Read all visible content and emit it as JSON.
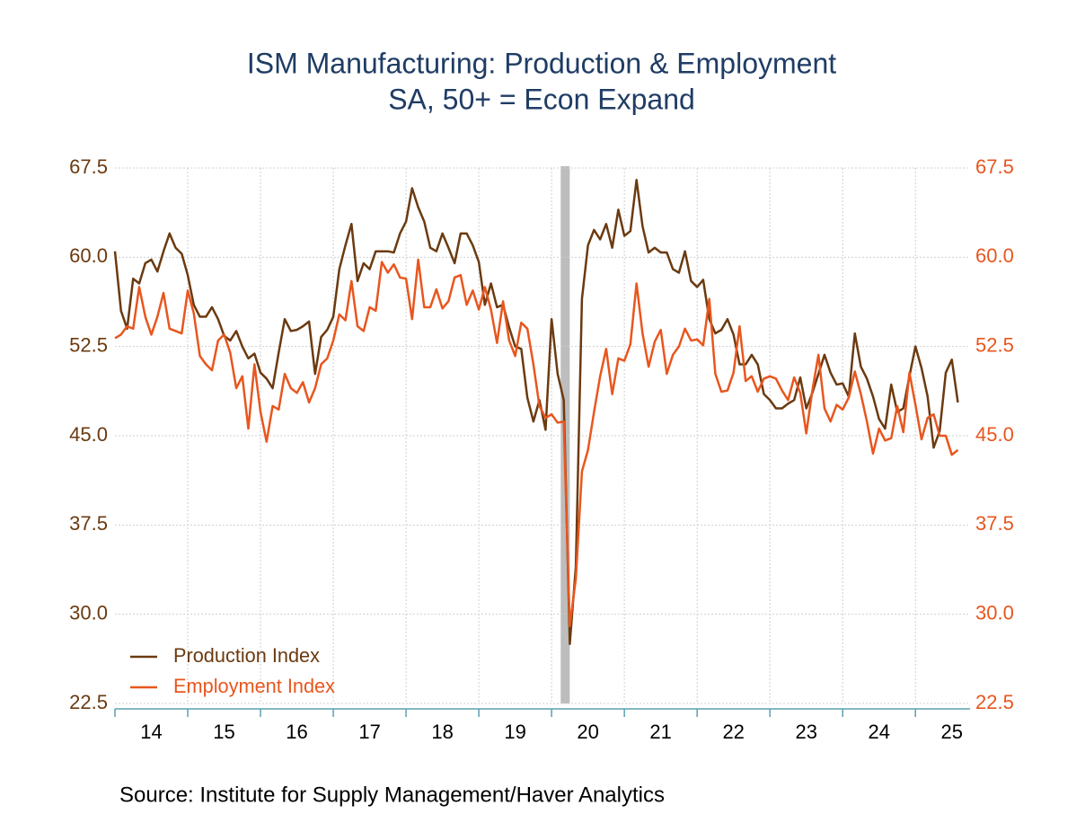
{
  "chart_data": {
    "type": "line",
    "title": "ISM Manufacturing: Production & Employment",
    "subtitle": "SA, 50+ = Econ Expand",
    "source": "Source:  Institute for Supply Management/Haver Analytics",
    "xlim": [
      2014,
      2025.75
    ],
    "xticks": [
      {
        "value": 2014,
        "label": "14"
      },
      {
        "value": 2015,
        "label": "15"
      },
      {
        "value": 2016,
        "label": "16"
      },
      {
        "value": 2017,
        "label": "17"
      },
      {
        "value": 2018,
        "label": "18"
      },
      {
        "value": 2019,
        "label": "19"
      },
      {
        "value": 2020,
        "label": "20"
      },
      {
        "value": 2021,
        "label": "21"
      },
      {
        "value": 2022,
        "label": "22"
      },
      {
        "value": 2023,
        "label": "23"
      },
      {
        "value": 2024,
        "label": "24"
      },
      {
        "value": 2025,
        "label": "25"
      }
    ],
    "ylim": [
      22.5,
      67.5
    ],
    "yticks": [
      22.5,
      {
        "value": 30,
        "label": "30.0"
      },
      37.5,
      {
        "value": 45,
        "label": "45.0"
      },
      52.5,
      {
        "value": 60,
        "label": "60.0"
      },
      67.5
    ],
    "y2lim": [
      22.5,
      67.5
    ],
    "y2ticks": [
      22.5,
      {
        "value": 30,
        "label": "30.0"
      },
      37.5,
      {
        "value": 45,
        "label": "45.0"
      },
      52.5,
      {
        "value": 60,
        "label": "60.0"
      },
      67.5
    ],
    "grid": true,
    "legend": "lower left",
    "recession": [
      2020.125,
      2020.25
    ],
    "x": [
      2014,
      2014.083,
      2014.167,
      2014.25,
      2014.333,
      2014.417,
      2014.5,
      2014.583,
      2014.667,
      2014.75,
      2014.833,
      2014.917,
      2015,
      2015.083,
      2015.167,
      2015.25,
      2015.333,
      2015.417,
      2015.5,
      2015.583,
      2015.667,
      2015.75,
      2015.833,
      2015.917,
      2016,
      2016.083,
      2016.167,
      2016.25,
      2016.333,
      2016.417,
      2016.5,
      2016.583,
      2016.667,
      2016.75,
      2016.833,
      2016.917,
      2017,
      2017.083,
      2017.167,
      2017.25,
      2017.333,
      2017.417,
      2017.5,
      2017.583,
      2017.667,
      2017.75,
      2017.833,
      2017.917,
      2018,
      2018.083,
      2018.167,
      2018.25,
      2018.333,
      2018.417,
      2018.5,
      2018.583,
      2018.667,
      2018.75,
      2018.833,
      2018.917,
      2019,
      2019.083,
      2019.167,
      2019.25,
      2019.333,
      2019.417,
      2019.5,
      2019.583,
      2019.667,
      2019.75,
      2019.833,
      2019.917,
      2020,
      2020.083,
      2020.167,
      2020.25,
      2020.333,
      2020.417,
      2020.5,
      2020.583,
      2020.667,
      2020.75,
      2020.833,
      2020.917,
      2021,
      2021.083,
      2021.167,
      2021.25,
      2021.333,
      2021.417,
      2021.5,
      2021.583,
      2021.667,
      2021.75,
      2021.833,
      2021.917,
      2022,
      2022.083,
      2022.167,
      2022.25,
      2022.333,
      2022.417,
      2022.5,
      2022.583,
      2022.667,
      2022.75,
      2022.833,
      2022.917,
      2023,
      2023.083,
      2023.167,
      2023.25,
      2023.333,
      2023.417,
      2023.5,
      2023.583,
      2023.667,
      2023.75,
      2023.833,
      2023.917,
      2024,
      2024.083,
      2024.167,
      2024.25,
      2024.333,
      2024.417,
      2024.5,
      2024.583,
      2024.667,
      2024.75,
      2024.833,
      2024.917,
      2025,
      2025.083,
      2025.167,
      2025.25,
      2025.333,
      2025.417,
      2025.5,
      2025.583
    ],
    "series": [
      {
        "name": "Production Index",
        "color": "#6b3a10",
        "values": [
          60.5,
          55.5,
          54.0,
          58.2,
          57.8,
          59.5,
          59.8,
          58.8,
          60.5,
          62.0,
          60.8,
          60.3,
          58.5,
          56.0,
          55.0,
          55.0,
          55.8,
          54.8,
          53.4,
          53.0,
          53.8,
          52.5,
          51.5,
          51.9,
          50.3,
          49.8,
          49.0,
          52.0,
          54.8,
          53.8,
          53.9,
          54.2,
          54.6,
          50.2,
          53.3,
          53.9,
          55.0,
          59.0,
          61.0,
          62.8,
          58.0,
          59.5,
          59.0,
          60.5,
          60.5,
          60.5,
          60.4,
          62.0,
          63.0,
          65.8,
          64.2,
          63.0,
          60.8,
          60.5,
          62.0,
          60.8,
          59.5,
          62.0,
          62.0,
          61.0,
          59.6,
          56.0,
          57.8,
          55.8,
          56.0,
          54.1,
          52.5,
          52.3,
          48.2,
          46.2,
          48.0,
          45.5,
          54.8,
          50.2,
          48.0,
          27.5,
          34.0,
          56.5,
          61.0,
          62.3,
          61.5,
          62.8,
          60.8,
          64.0,
          61.8,
          62.2,
          66.5,
          62.6,
          60.4,
          60.8,
          60.4,
          60.4,
          59.0,
          58.7,
          60.5,
          58.0,
          57.5,
          58.1,
          54.8,
          53.6,
          53.9,
          54.8,
          53.5,
          51.0,
          51.0,
          51.8,
          51.0,
          48.5,
          48.0,
          47.3,
          47.3,
          47.7,
          48.0,
          49.9,
          47.3,
          48.6,
          50.2,
          51.8,
          50.3,
          49.3,
          49.4,
          48.3,
          53.6,
          50.8,
          49.8,
          48.3,
          46.4,
          45.6,
          49.3,
          47.0,
          47.3,
          50.0,
          52.5,
          50.7,
          48.3,
          44.0,
          45.4,
          50.3,
          51.4,
          47.8
        ]
      },
      {
        "name": "Employment Index",
        "color": "#e8561e",
        "axis": "y2",
        "values": [
          53.2,
          53.5,
          54.2,
          54.0,
          57.5,
          55.0,
          53.5,
          55.0,
          57.0,
          54.0,
          53.8,
          53.6,
          57.2,
          55.3,
          51.7,
          51.0,
          50.5,
          53.0,
          53.5,
          52.0,
          49.0,
          50.0,
          45.6,
          51.0,
          47.0,
          44.5,
          47.5,
          47.2,
          50.2,
          49.0,
          48.6,
          49.5,
          47.8,
          49.0,
          51.0,
          51.5,
          53.0,
          55.2,
          54.7,
          58.0,
          54.2,
          53.8,
          55.8,
          55.5,
          59.6,
          58.7,
          59.4,
          58.3,
          58.2,
          54.8,
          59.8,
          55.8,
          55.8,
          57.3,
          55.7,
          56.3,
          58.3,
          58.5,
          56.0,
          57.2,
          55.6,
          57.5,
          55.6,
          52.8,
          56.3,
          53.0,
          51.7,
          54.5,
          54.0,
          51.0,
          47.5,
          46.5,
          46.8,
          46.1,
          46.2,
          29.0,
          33.0,
          42.0,
          43.8,
          47.0,
          50.0,
          52.3,
          48.5,
          51.5,
          51.3,
          52.7,
          57.8,
          53.6,
          50.8,
          52.9,
          53.9,
          50.2,
          51.8,
          52.5,
          54.0,
          53.0,
          53.1,
          52.6,
          56.5,
          50.2,
          48.7,
          48.8,
          50.3,
          54.2,
          49.6,
          50.0,
          48.7,
          49.8,
          50.0,
          49.8,
          48.8,
          48.0,
          49.9,
          48.6,
          45.2,
          48.8,
          51.8,
          47.3,
          46.2,
          47.6,
          47.2,
          48.2,
          50.4,
          48.5,
          46.2,
          43.5,
          45.6,
          44.6,
          44.8,
          47.5,
          45.3,
          50.3,
          47.6,
          44.7,
          46.5,
          46.8,
          45.0,
          45.0,
          43.4,
          43.8
        ]
      }
    ]
  }
}
